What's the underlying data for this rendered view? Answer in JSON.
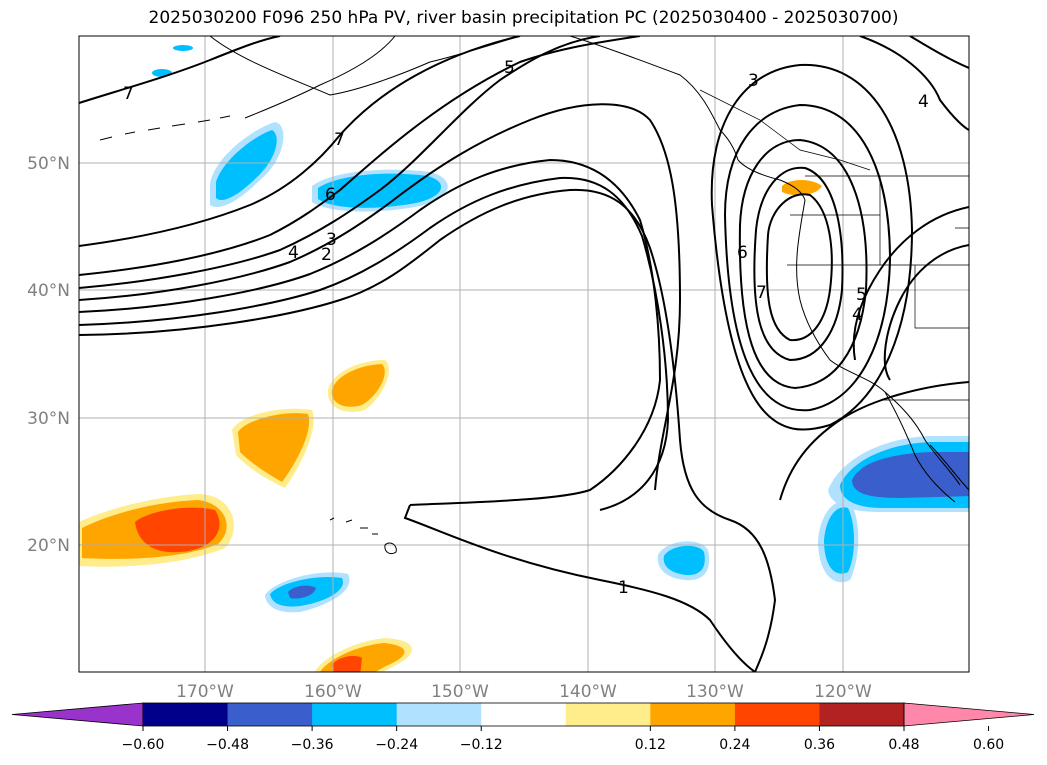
{
  "title": "2025030200 F096 250 hPa PV, river basin precipitation PC (2025030400 - 2025030700)",
  "map": {
    "lon_labels": [
      "170°W",
      "160°W",
      "150°W",
      "140°W",
      "130°W",
      "120°W"
    ],
    "lat_labels": [
      "50°N",
      "40°N",
      "30°N",
      "20°N"
    ],
    "contour_labels": [
      "7",
      "5",
      "3",
      "4",
      "7",
      "6",
      "4",
      "3",
      "2",
      "6",
      "7",
      "5",
      "4",
      "1"
    ]
  },
  "colorbar": {
    "tick_labels": [
      "−0.60",
      "−0.48",
      "−0.36",
      "−0.24",
      "−0.12",
      "0.12",
      "0.24",
      "0.36",
      "0.48",
      "0.60"
    ],
    "colors": [
      "#9933cc",
      "#00008b",
      "#3a5fcd",
      "#00bfff",
      "#b0e2ff",
      "#ffffff",
      "#ffec8b",
      "#ffa500",
      "#ff4500",
      "#b22222",
      "#ff88aa"
    ]
  },
  "fill_colors": {
    "neg_light": "#b0e2ff",
    "neg_mid": "#00bfff",
    "neg_dark": "#3a5fcd",
    "pos_light": "#ffec8b",
    "pos_mid": "#ffa500",
    "pos_dark": "#ff4500"
  }
}
